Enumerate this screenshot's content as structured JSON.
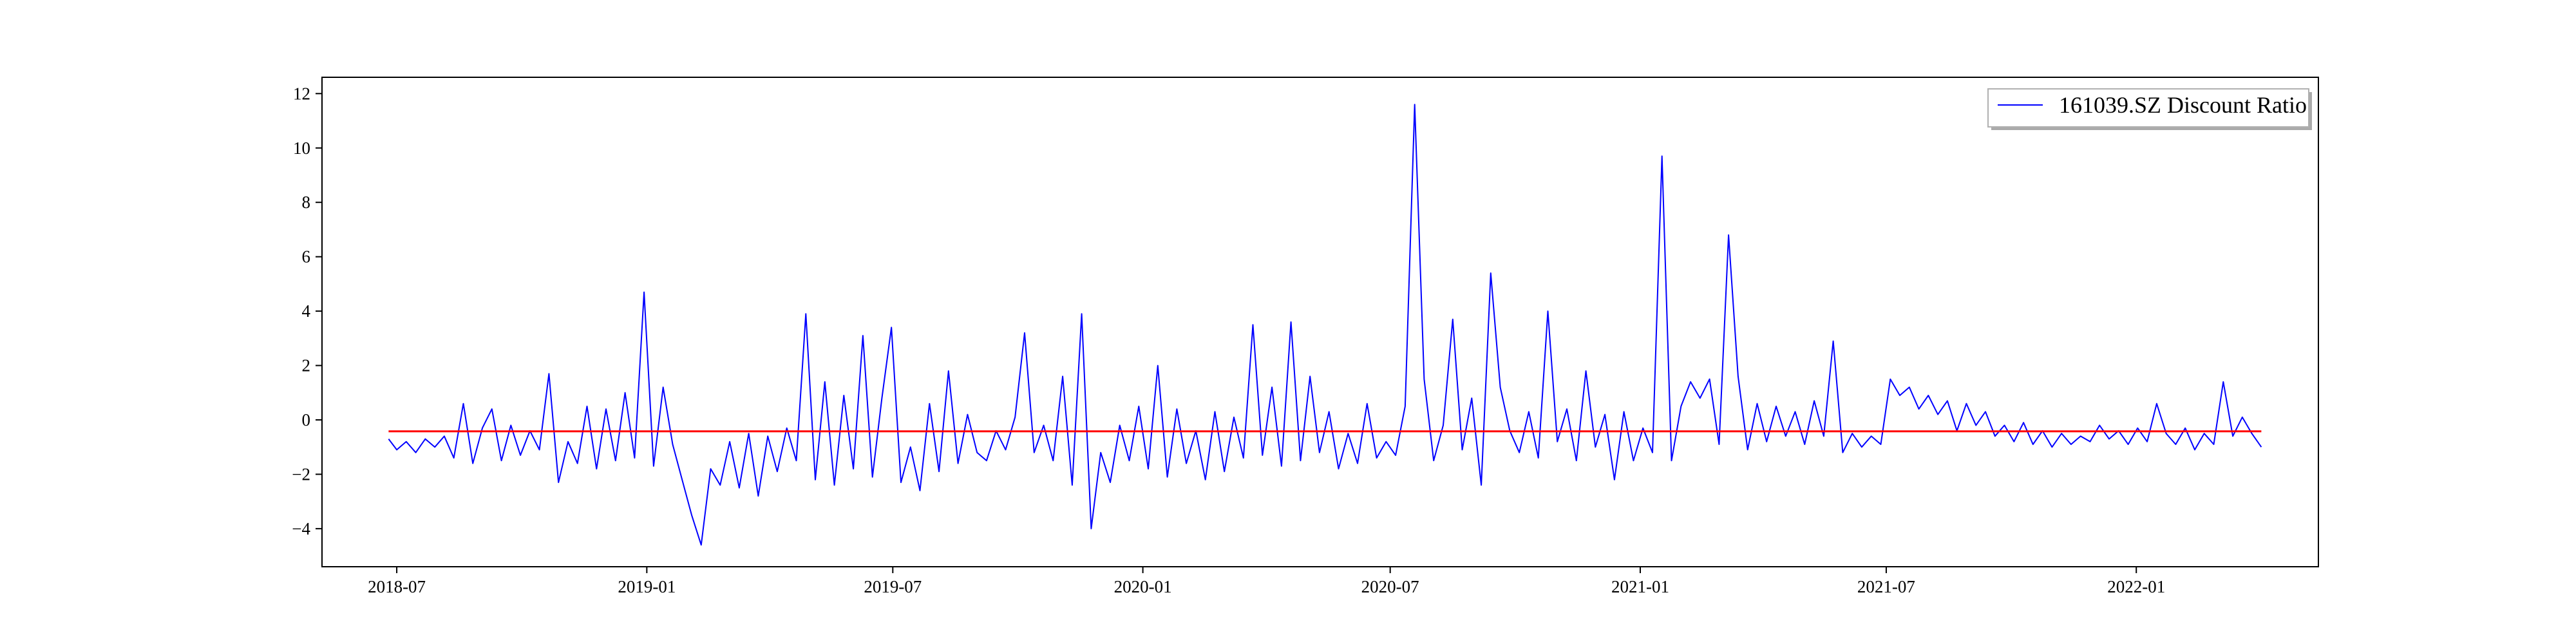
{
  "chart_data": {
    "type": "line",
    "title": "",
    "xlabel": "",
    "ylabel": "",
    "xlim": [
      "2018-05-07",
      "2022-05-15"
    ],
    "ylim": [
      -5.4,
      12.6
    ],
    "x_ticks": [
      "2018-07",
      "2019-01",
      "2019-07",
      "2020-01",
      "2020-07",
      "2021-01",
      "2021-07",
      "2022-01"
    ],
    "y_ticks": [
      -4,
      -2,
      0,
      2,
      4,
      6,
      8,
      10,
      12
    ],
    "grid": false,
    "legend_position": "top-right",
    "series": [
      {
        "name": "161039.SZ Discount Ratio",
        "color": "#0000ff",
        "points": [
          [
            "2018-06-25",
            -0.7
          ],
          [
            "2018-07-01",
            -1.1
          ],
          [
            "2018-07-08",
            -0.8
          ],
          [
            "2018-07-15",
            -1.2
          ],
          [
            "2018-07-22",
            -0.7
          ],
          [
            "2018-07-29",
            -1.0
          ],
          [
            "2018-08-05",
            -0.6
          ],
          [
            "2018-08-12",
            -1.4
          ],
          [
            "2018-08-19",
            0.6
          ],
          [
            "2018-08-26",
            -1.6
          ],
          [
            "2018-09-02",
            -0.3
          ],
          [
            "2018-09-09",
            0.4
          ],
          [
            "2018-09-16",
            -1.5
          ],
          [
            "2018-09-23",
            -0.2
          ],
          [
            "2018-09-30",
            -1.3
          ],
          [
            "2018-10-07",
            -0.4
          ],
          [
            "2018-10-14",
            -1.1
          ],
          [
            "2018-10-21",
            1.7
          ],
          [
            "2018-10-28",
            -2.3
          ],
          [
            "2018-11-04",
            -0.8
          ],
          [
            "2018-11-11",
            -1.6
          ],
          [
            "2018-11-18",
            0.5
          ],
          [
            "2018-11-25",
            -1.8
          ],
          [
            "2018-12-02",
            0.4
          ],
          [
            "2018-12-09",
            -1.5
          ],
          [
            "2018-12-16",
            1.0
          ],
          [
            "2018-12-23",
            -1.4
          ],
          [
            "2018-12-30",
            4.7
          ],
          [
            "2019-01-06",
            -1.7
          ],
          [
            "2019-01-13",
            1.2
          ],
          [
            "2019-01-20",
            -0.9
          ],
          [
            "2019-01-27",
            -2.2
          ],
          [
            "2019-02-03",
            -3.5
          ],
          [
            "2019-02-10",
            -4.6
          ],
          [
            "2019-02-17",
            -1.8
          ],
          [
            "2019-02-24",
            -2.4
          ],
          [
            "2019-03-03",
            -0.8
          ],
          [
            "2019-03-10",
            -2.5
          ],
          [
            "2019-03-17",
            -0.5
          ],
          [
            "2019-03-24",
            -2.8
          ],
          [
            "2019-03-31",
            -0.6
          ],
          [
            "2019-04-07",
            -1.9
          ],
          [
            "2019-04-14",
            -0.3
          ],
          [
            "2019-04-21",
            -1.5
          ],
          [
            "2019-04-28",
            3.9
          ],
          [
            "2019-05-05",
            -2.2
          ],
          [
            "2019-05-12",
            1.4
          ],
          [
            "2019-05-19",
            -2.4
          ],
          [
            "2019-05-26",
            0.9
          ],
          [
            "2019-06-02",
            -1.8
          ],
          [
            "2019-06-09",
            3.1
          ],
          [
            "2019-06-16",
            -2.1
          ],
          [
            "2019-06-23",
            0.8
          ],
          [
            "2019-06-30",
            3.4
          ],
          [
            "2019-07-07",
            -2.3
          ],
          [
            "2019-07-14",
            -1.0
          ],
          [
            "2019-07-21",
            -2.6
          ],
          [
            "2019-07-28",
            0.6
          ],
          [
            "2019-08-04",
            -1.9
          ],
          [
            "2019-08-11",
            1.8
          ],
          [
            "2019-08-18",
            -1.6
          ],
          [
            "2019-08-25",
            0.2
          ],
          [
            "2019-09-01",
            -1.2
          ],
          [
            "2019-09-08",
            -1.5
          ],
          [
            "2019-09-15",
            -0.4
          ],
          [
            "2019-09-22",
            -1.1
          ],
          [
            "2019-09-29",
            0.1
          ],
          [
            "2019-10-06",
            3.2
          ],
          [
            "2019-10-13",
            -1.2
          ],
          [
            "2019-10-20",
            -0.2
          ],
          [
            "2019-10-27",
            -1.5
          ],
          [
            "2019-11-03",
            1.6
          ],
          [
            "2019-11-10",
            -2.4
          ],
          [
            "2019-11-17",
            3.9
          ],
          [
            "2019-11-24",
            -4.0
          ],
          [
            "2019-12-01",
            -1.2
          ],
          [
            "2019-12-08",
            -2.3
          ],
          [
            "2019-12-15",
            -0.2
          ],
          [
            "2019-12-22",
            -1.5
          ],
          [
            "2019-12-29",
            0.5
          ],
          [
            "2020-01-05",
            -1.8
          ],
          [
            "2020-01-12",
            2.0
          ],
          [
            "2020-01-19",
            -2.1
          ],
          [
            "2020-01-26",
            0.4
          ],
          [
            "2020-02-02",
            -1.6
          ],
          [
            "2020-02-09",
            -0.4
          ],
          [
            "2020-02-16",
            -2.2
          ],
          [
            "2020-02-23",
            0.3
          ],
          [
            "2020-03-01",
            -1.9
          ],
          [
            "2020-03-08",
            0.1
          ],
          [
            "2020-03-15",
            -1.4
          ],
          [
            "2020-03-22",
            3.5
          ],
          [
            "2020-03-29",
            -1.3
          ],
          [
            "2020-04-05",
            1.2
          ],
          [
            "2020-04-12",
            -1.7
          ],
          [
            "2020-04-19",
            3.6
          ],
          [
            "2020-04-26",
            -1.5
          ],
          [
            "2020-05-03",
            1.6
          ],
          [
            "2020-05-10",
            -1.2
          ],
          [
            "2020-05-17",
            0.3
          ],
          [
            "2020-05-24",
            -1.8
          ],
          [
            "2020-05-31",
            -0.5
          ],
          [
            "2020-06-07",
            -1.6
          ],
          [
            "2020-06-14",
            0.6
          ],
          [
            "2020-06-21",
            -1.4
          ],
          [
            "2020-06-28",
            -0.8
          ],
          [
            "2020-07-05",
            -1.3
          ],
          [
            "2020-07-12",
            0.5
          ],
          [
            "2020-07-19",
            11.6
          ],
          [
            "2020-07-26",
            1.5
          ],
          [
            "2020-08-02",
            -1.5
          ],
          [
            "2020-08-09",
            -0.2
          ],
          [
            "2020-08-16",
            3.7
          ],
          [
            "2020-08-23",
            -1.1
          ],
          [
            "2020-08-30",
            0.8
          ],
          [
            "2020-09-06",
            -2.4
          ],
          [
            "2020-09-13",
            5.4
          ],
          [
            "2020-09-20",
            1.2
          ],
          [
            "2020-09-27",
            -0.4
          ],
          [
            "2020-10-04",
            -1.2
          ],
          [
            "2020-10-11",
            0.3
          ],
          [
            "2020-10-18",
            -1.4
          ],
          [
            "2020-10-25",
            4.0
          ],
          [
            "2020-11-01",
            -0.8
          ],
          [
            "2020-11-08",
            0.4
          ],
          [
            "2020-11-15",
            -1.5
          ],
          [
            "2020-11-22",
            1.8
          ],
          [
            "2020-11-29",
            -1.0
          ],
          [
            "2020-12-06",
            0.2
          ],
          [
            "2020-12-13",
            -2.2
          ],
          [
            "2020-12-20",
            0.3
          ],
          [
            "2020-12-27",
            -1.5
          ],
          [
            "2021-01-03",
            -0.3
          ],
          [
            "2021-01-10",
            -1.2
          ],
          [
            "2021-01-17",
            9.7
          ],
          [
            "2021-01-24",
            -1.5
          ],
          [
            "2021-01-31",
            0.5
          ],
          [
            "2021-02-07",
            1.4
          ],
          [
            "2021-02-14",
            0.8
          ],
          [
            "2021-02-21",
            1.5
          ],
          [
            "2021-02-28",
            -0.9
          ],
          [
            "2021-03-07",
            6.8
          ],
          [
            "2021-03-14",
            1.6
          ],
          [
            "2021-03-21",
            -1.1
          ],
          [
            "2021-03-28",
            0.6
          ],
          [
            "2021-04-04",
            -0.8
          ],
          [
            "2021-04-11",
            0.5
          ],
          [
            "2021-04-18",
            -0.6
          ],
          [
            "2021-04-25",
            0.3
          ],
          [
            "2021-05-02",
            -0.9
          ],
          [
            "2021-05-09",
            0.7
          ],
          [
            "2021-05-16",
            -0.6
          ],
          [
            "2021-05-23",
            2.9
          ],
          [
            "2021-05-30",
            -1.2
          ],
          [
            "2021-06-06",
            -0.5
          ],
          [
            "2021-06-13",
            -1.0
          ],
          [
            "2021-06-20",
            -0.6
          ],
          [
            "2021-06-27",
            -0.9
          ],
          [
            "2021-07-04",
            1.5
          ],
          [
            "2021-07-11",
            0.9
          ],
          [
            "2021-07-18",
            1.2
          ],
          [
            "2021-07-25",
            0.4
          ],
          [
            "2021-08-01",
            0.9
          ],
          [
            "2021-08-08",
            0.2
          ],
          [
            "2021-08-15",
            0.7
          ],
          [
            "2021-08-22",
            -0.4
          ],
          [
            "2021-08-29",
            0.6
          ],
          [
            "2021-09-05",
            -0.2
          ],
          [
            "2021-09-12",
            0.3
          ],
          [
            "2021-09-19",
            -0.6
          ],
          [
            "2021-09-26",
            -0.2
          ],
          [
            "2021-10-03",
            -0.8
          ],
          [
            "2021-10-10",
            -0.1
          ],
          [
            "2021-10-17",
            -0.9
          ],
          [
            "2021-10-24",
            -0.4
          ],
          [
            "2021-10-31",
            -1.0
          ],
          [
            "2021-11-07",
            -0.5
          ],
          [
            "2021-11-14",
            -0.9
          ],
          [
            "2021-11-21",
            -0.6
          ],
          [
            "2021-11-28",
            -0.8
          ],
          [
            "2021-12-05",
            -0.2
          ],
          [
            "2021-12-12",
            -0.7
          ],
          [
            "2021-12-19",
            -0.4
          ],
          [
            "2021-12-26",
            -0.9
          ],
          [
            "2022-01-02",
            -0.3
          ],
          [
            "2022-01-09",
            -0.8
          ],
          [
            "2022-01-16",
            0.6
          ],
          [
            "2022-01-23",
            -0.5
          ],
          [
            "2022-01-30",
            -0.9
          ],
          [
            "2022-02-06",
            -0.3
          ],
          [
            "2022-02-13",
            -1.1
          ],
          [
            "2022-02-20",
            -0.5
          ],
          [
            "2022-02-27",
            -0.9
          ],
          [
            "2022-03-06",
            1.4
          ],
          [
            "2022-03-13",
            -0.6
          ],
          [
            "2022-03-20",
            0.1
          ],
          [
            "2022-03-27",
            -0.5
          ],
          [
            "2022-04-03",
            -1.0
          ]
        ]
      },
      {
        "name": "",
        "color": "#ff0000",
        "points": [
          [
            "2018-06-25",
            -0.42
          ],
          [
            "2022-04-03",
            -0.42
          ]
        ]
      }
    ]
  }
}
